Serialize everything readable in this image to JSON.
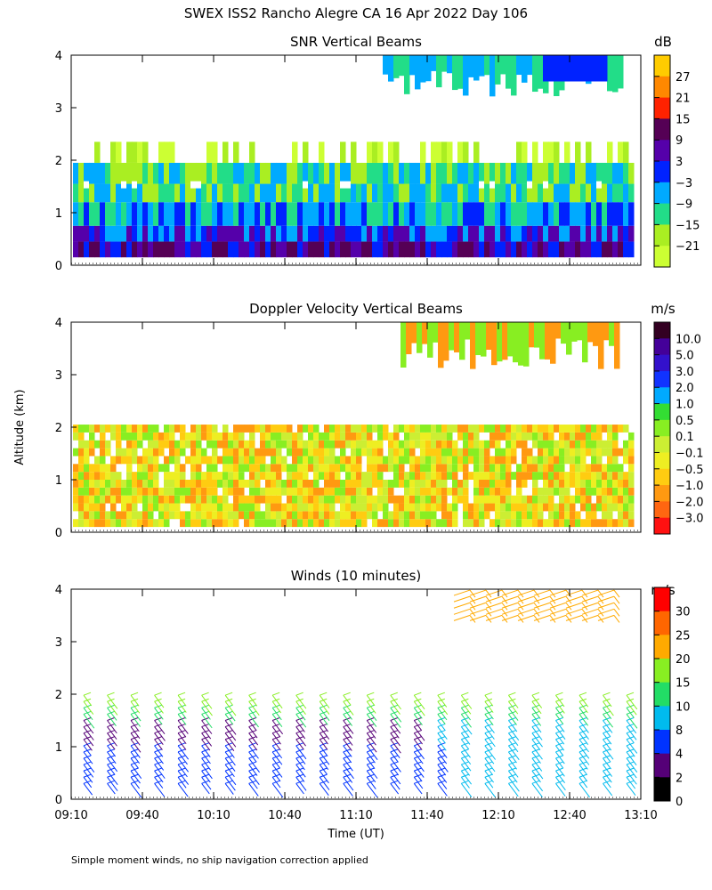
{
  "title": "SWEX ISS2 Rancho Alegre CA  16 Apr 2022 Day 106",
  "ylabel": "Altitude (km)",
  "xlabel": "Time (UT)",
  "footnote": "Simple moment winds, no ship navigation correction applied",
  "x_ticks": [
    "09:10",
    "09:40",
    "10:10",
    "10:40",
    "11:10",
    "11:40",
    "12:10",
    "12:40",
    "13:10"
  ],
  "y_ticks": [
    "0",
    "1",
    "2",
    "3",
    "4"
  ],
  "chart_data": [
    {
      "type": "heatmap",
      "title": "SNR Vertical Beams",
      "units": "dB",
      "ylim": [
        0,
        4
      ],
      "colorbar_labels": [
        "27",
        "21",
        "15",
        "9",
        "3",
        "−3",
        "−9",
        "−15",
        "−21"
      ],
      "colorbar_colors": [
        "#ffcc00",
        "#ff8800",
        "#ff2200",
        "#550055",
        "#5500aa",
        "#0022ff",
        "#00aaff",
        "#22dd88",
        "#aaee22",
        "#ccff33"
      ]
    },
    {
      "type": "heatmap",
      "title": "Doppler Velocity Vertical Beams",
      "units": "m/s",
      "ylim": [
        0,
        4
      ],
      "colorbar_labels": [
        "10.0",
        "5.0",
        "3.0",
        "2.0",
        "1.0",
        "0.5",
        "0.1",
        "−0.1",
        "−0.5",
        "−1.0",
        "−2.0",
        "−3.0"
      ],
      "colorbar_colors": [
        "#330022",
        "#440099",
        "#3311cc",
        "#1133ff",
        "#00aaff",
        "#33dd33",
        "#88ee22",
        "#ccee33",
        "#eeee22",
        "#ffcc11",
        "#ff9911",
        "#ff6611",
        "#ff1111"
      ]
    },
    {
      "type": "scatter",
      "title": "Winds (10 minutes)",
      "units": "m/s",
      "ylim": [
        0,
        4
      ],
      "colorbar_labels": [
        "30",
        "25",
        "20",
        "15",
        "10",
        "8",
        "4",
        "2",
        "0"
      ],
      "colorbar_colors": [
        "#ff0000",
        "#ff6600",
        "#ffaa00",
        "#88ee22",
        "#22dd66",
        "#00bbee",
        "#0033ff",
        "#550077",
        "#000000"
      ]
    }
  ]
}
